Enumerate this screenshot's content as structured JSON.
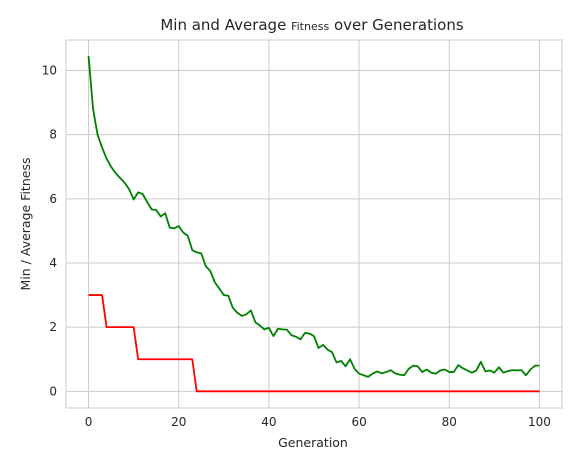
{
  "chart_data": {
    "type": "line",
    "title_parts": [
      "Min and Average ",
      "Fitness",
      " over Generations"
    ],
    "xlabel": "Generation",
    "ylabel": "Min / Average Fitness",
    "xlim": [
      -5,
      105
    ],
    "ylim": [
      -0.52,
      10.95
    ],
    "xticks": [
      0,
      20,
      40,
      60,
      80,
      100
    ],
    "yticks": [
      0,
      2,
      4,
      6,
      8,
      10
    ],
    "grid": true,
    "legend": "none",
    "series": [
      {
        "color": "#ff0000",
        "x": [
          0,
          3,
          4,
          10,
          11,
          23,
          24,
          100
        ],
        "y": [
          3,
          3,
          2,
          2,
          1,
          1,
          0,
          0
        ]
      },
      {
        "color": "#008000",
        "x": [
          0,
          1,
          2,
          3,
          4,
          5,
          6,
          7,
          8,
          9,
          10,
          11,
          12,
          13,
          14,
          15,
          16,
          17,
          18,
          19,
          20,
          21,
          22,
          23,
          24,
          25,
          26,
          27,
          28,
          29,
          30,
          31,
          32,
          33,
          34,
          35,
          36,
          37,
          38,
          39,
          40,
          41,
          42,
          43,
          44,
          45,
          46,
          47,
          48,
          49,
          50,
          51,
          52,
          53,
          54,
          55,
          56,
          57,
          58,
          59,
          60,
          61,
          62,
          63,
          64,
          65,
          66,
          67,
          68,
          69,
          70,
          71,
          72,
          73,
          74,
          75,
          76,
          77,
          78,
          79,
          80,
          81,
          82,
          83,
          84,
          85,
          86,
          87,
          88,
          89,
          90,
          91,
          92,
          93,
          94,
          95,
          96,
          97,
          98,
          99,
          100
        ],
        "y": [
          10.45,
          8.8,
          8.0,
          7.6,
          7.25,
          7.0,
          6.8,
          6.65,
          6.5,
          6.3,
          5.98,
          6.2,
          6.15,
          5.9,
          5.67,
          5.65,
          5.45,
          5.55,
          5.1,
          5.08,
          5.15,
          4.95,
          4.85,
          4.4,
          4.33,
          4.3,
          3.9,
          3.75,
          3.4,
          3.2,
          3.0,
          2.98,
          2.6,
          2.45,
          2.35,
          2.4,
          2.52,
          2.15,
          2.05,
          1.93,
          1.98,
          1.72,
          1.95,
          1.93,
          1.92,
          1.75,
          1.7,
          1.62,
          1.82,
          1.8,
          1.72,
          1.35,
          1.45,
          1.3,
          1.22,
          0.9,
          0.95,
          0.78,
          1.0,
          0.7,
          0.55,
          0.5,
          0.45,
          0.55,
          0.62,
          0.56,
          0.6,
          0.66,
          0.56,
          0.52,
          0.5,
          0.7,
          0.8,
          0.78,
          0.6,
          0.68,
          0.58,
          0.55,
          0.65,
          0.68,
          0.6,
          0.6,
          0.82,
          0.72,
          0.65,
          0.58,
          0.65,
          0.92,
          0.62,
          0.65,
          0.58,
          0.75,
          0.58,
          0.63,
          0.66,
          0.65,
          0.66,
          0.5,
          0.68,
          0.8,
          0.8
        ]
      }
    ]
  }
}
